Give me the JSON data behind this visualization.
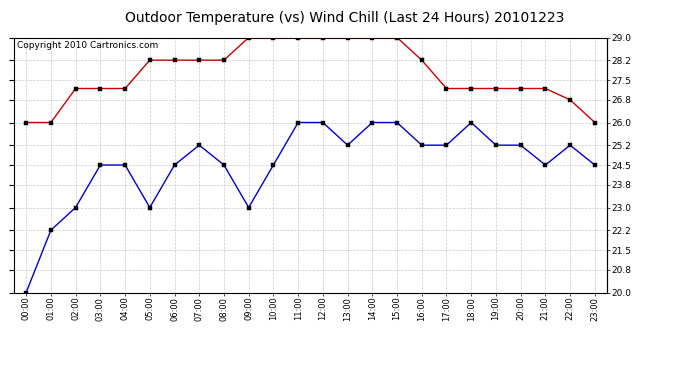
{
  "title": "Outdoor Temperature (vs) Wind Chill (Last 24 Hours) 20101223",
  "copyright": "Copyright 2010 Cartronics.com",
  "hours": [
    "00:00",
    "01:00",
    "02:00",
    "03:00",
    "04:00",
    "05:00",
    "06:00",
    "07:00",
    "08:00",
    "09:00",
    "10:00",
    "11:00",
    "12:00",
    "13:00",
    "14:00",
    "15:00",
    "16:00",
    "17:00",
    "18:00",
    "19:00",
    "20:00",
    "21:00",
    "22:00",
    "23:00"
  ],
  "temp": [
    26.0,
    26.0,
    27.2,
    27.2,
    27.2,
    28.2,
    28.2,
    28.2,
    28.2,
    29.0,
    29.0,
    29.0,
    29.0,
    29.0,
    29.0,
    29.0,
    28.2,
    27.2,
    27.2,
    27.2,
    27.2,
    27.2,
    26.8,
    26.0
  ],
  "windchill": [
    20.0,
    22.2,
    23.0,
    24.5,
    24.5,
    23.0,
    24.5,
    25.2,
    24.5,
    23.0,
    24.5,
    26.0,
    26.0,
    25.2,
    26.0,
    26.0,
    25.2,
    25.2,
    26.0,
    25.2,
    25.2,
    24.5,
    25.2,
    24.5
  ],
  "ylim_min": 20.0,
  "ylim_max": 29.0,
  "yticks": [
    20.0,
    20.8,
    21.5,
    22.2,
    23.0,
    23.8,
    24.5,
    25.2,
    26.0,
    26.8,
    27.5,
    28.2,
    29.0
  ],
  "temp_color": "#cc0000",
  "windchill_color": "#0000cc",
  "bg_color": "#ffffff",
  "grid_color": "#bbbbbb",
  "title_fontsize": 10,
  "copyright_fontsize": 6.5
}
